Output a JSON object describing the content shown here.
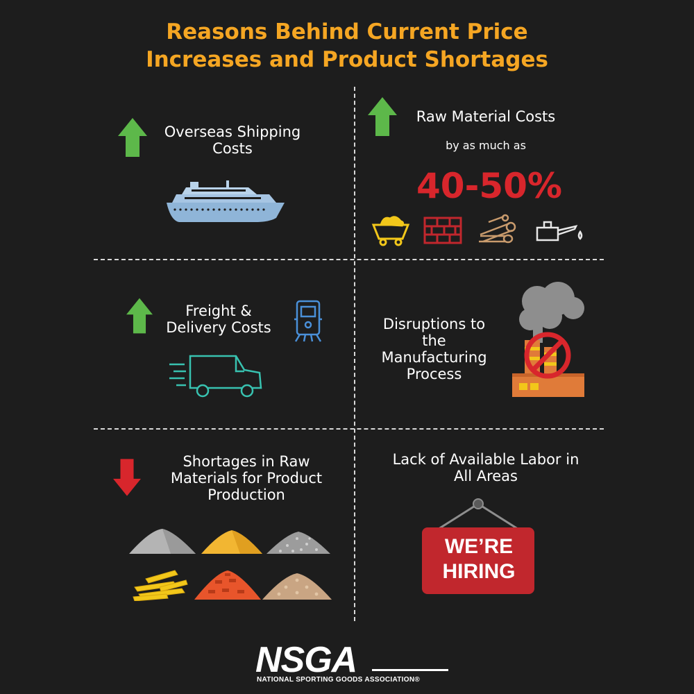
{
  "title": {
    "line1": "Reasons Behind Current Price",
    "line2": "Increases and Product Shortages"
  },
  "colors": {
    "background": "#1d1d1d",
    "title": "#f5a623",
    "arrow_up": "#5db84a",
    "arrow_down": "#d8262c",
    "highlight": "#d8262c",
    "sign": "#c1272d"
  },
  "cells": {
    "shipping": {
      "line1": "Overseas Shipping",
      "line2": "Costs",
      "arrow": "arrow-up-icon",
      "icon": "cruise-ship-icon"
    },
    "raw_costs": {
      "heading": "Raw Material Costs",
      "sub": "by as much as",
      "percent": "40-50%",
      "arrow": "arrow-up-icon",
      "icons": [
        "mine-cart-icon",
        "brick-wall-icon",
        "logs-icon",
        "oil-can-icon"
      ]
    },
    "freight": {
      "line1": "Freight &",
      "line2": "Delivery Costs",
      "arrow": "arrow-up-icon",
      "icons": [
        "train-icon",
        "delivery-van-icon"
      ]
    },
    "manufacturing": {
      "line1": "Disruptions to",
      "line2": "the",
      "line3": "Manufacturing",
      "line4": "Process",
      "icon": "factory-disrupted-icon"
    },
    "shortages": {
      "line1": "Shortages in Raw",
      "line2": "Materials for Product",
      "line3": "Production",
      "arrow": "arrow-down-icon",
      "icons": [
        "cement-pile-icon",
        "sand-pile-icon",
        "gravel-pile-icon",
        "lumber-pile-icon",
        "brick-pile-icon",
        "pebble-pile-icon"
      ]
    },
    "labor": {
      "line1": "Lack of Available Labor in",
      "line2": "All Areas",
      "sign_line1": "WE’RE",
      "sign_line2": "HIRING",
      "icon": "hiring-sign-icon"
    }
  },
  "logo": {
    "name": "NSGA",
    "sub": "NATIONAL SPORTING GOODS ASSOCIATION®"
  }
}
